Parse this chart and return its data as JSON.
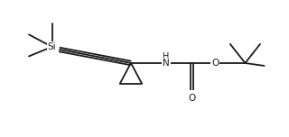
{
  "bg_color": "#ffffff",
  "line_color": "#1a1a1a",
  "lw": 1.3,
  "figsize": [
    3.2,
    1.52
  ],
  "dpi": 100,
  "Si_label": "Si",
  "H_label": "H",
  "N_label": "N",
  "O_ester_label": "O",
  "O_carbonyl_label": "O",
  "xlim": [
    0.0,
    10.0
  ],
  "ylim": [
    0.5,
    5.5
  ],
  "Si_x": 1.6,
  "Si_y": 3.8,
  "cp_x": 4.5,
  "cp_y": 3.2,
  "N_x": 5.8,
  "N_y": 3.2,
  "Cc_x": 6.7,
  "Cc_y": 3.2,
  "Oe_x": 7.6,
  "Oe_y": 3.2,
  "Oc_x": 6.7,
  "Oc_y": 2.2,
  "tbu_x": 8.7,
  "tbu_y": 3.2
}
